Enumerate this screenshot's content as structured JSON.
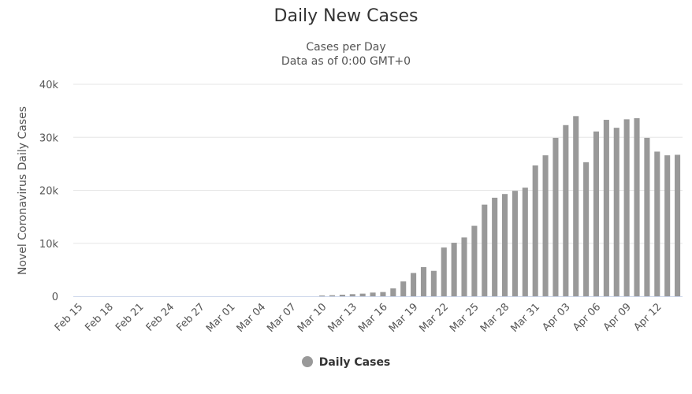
{
  "chart_data": {
    "type": "bar",
    "title": "Daily New Cases",
    "subtitle": [
      "Cases per Day",
      "Data as of 0:00 GMT+0"
    ],
    "ylabel": "Novel Coronavirus Daily Cases",
    "xlabel": "",
    "ylim": [
      0,
      40000
    ],
    "yticks": [
      0,
      10000,
      20000,
      30000,
      40000
    ],
    "ytick_labels": [
      "0",
      "10k",
      "20k",
      "30k",
      "40k"
    ],
    "grid": true,
    "legend_position": "bottom-center",
    "bar_color": "#999999",
    "categories": [
      "Feb 15",
      "Feb 16",
      "Feb 17",
      "Feb 18",
      "Feb 19",
      "Feb 20",
      "Feb 21",
      "Feb 22",
      "Feb 23",
      "Feb 24",
      "Feb 25",
      "Feb 26",
      "Feb 27",
      "Feb 28",
      "Feb 29",
      "Mar 01",
      "Mar 02",
      "Mar 03",
      "Mar 04",
      "Mar 05",
      "Mar 06",
      "Mar 07",
      "Mar 08",
      "Mar 09",
      "Mar 10",
      "Mar 11",
      "Mar 12",
      "Mar 13",
      "Mar 14",
      "Mar 15",
      "Mar 16",
      "Mar 17",
      "Mar 18",
      "Mar 19",
      "Mar 20",
      "Mar 21",
      "Mar 22",
      "Mar 23",
      "Mar 24",
      "Mar 25",
      "Mar 26",
      "Mar 27",
      "Mar 28",
      "Mar 29",
      "Mar 30",
      "Mar 31",
      "Apr 01",
      "Apr 02",
      "Apr 03",
      "Apr 04",
      "Apr 05",
      "Apr 06",
      "Apr 07",
      "Apr 08",
      "Apr 09",
      "Apr 10",
      "Apr 11",
      "Apr 12",
      "Apr 13",
      "Apr 14"
    ],
    "xtick_labels": [
      "Feb 15",
      "Feb 18",
      "Feb 21",
      "Feb 24",
      "Feb 27",
      "Mar 01",
      "Mar 04",
      "Mar 07",
      "Mar 10",
      "Mar 13",
      "Mar 16",
      "Mar 19",
      "Mar 22",
      "Mar 25",
      "Mar 28",
      "Mar 31",
      "Apr 03",
      "Apr 06",
      "Apr 09",
      "Apr 12"
    ],
    "series": [
      {
        "name": "Daily Cases",
        "values": [
          0,
          0,
          0,
          0,
          0,
          0,
          0,
          0,
          0,
          0,
          0,
          0,
          0,
          0,
          0,
          0,
          0,
          0,
          0,
          0,
          0,
          0,
          0,
          0,
          150,
          200,
          300,
          400,
          500,
          700,
          800,
          1500,
          2800,
          4400,
          5500,
          4800,
          9200,
          10100,
          11100,
          13300,
          17300,
          18600,
          19300,
          19900,
          20500,
          24700,
          26600,
          29900,
          32300,
          34000,
          25300,
          31100,
          33300,
          31800,
          33400,
          33600,
          29900,
          27300,
          26600,
          26700
        ]
      }
    ]
  }
}
